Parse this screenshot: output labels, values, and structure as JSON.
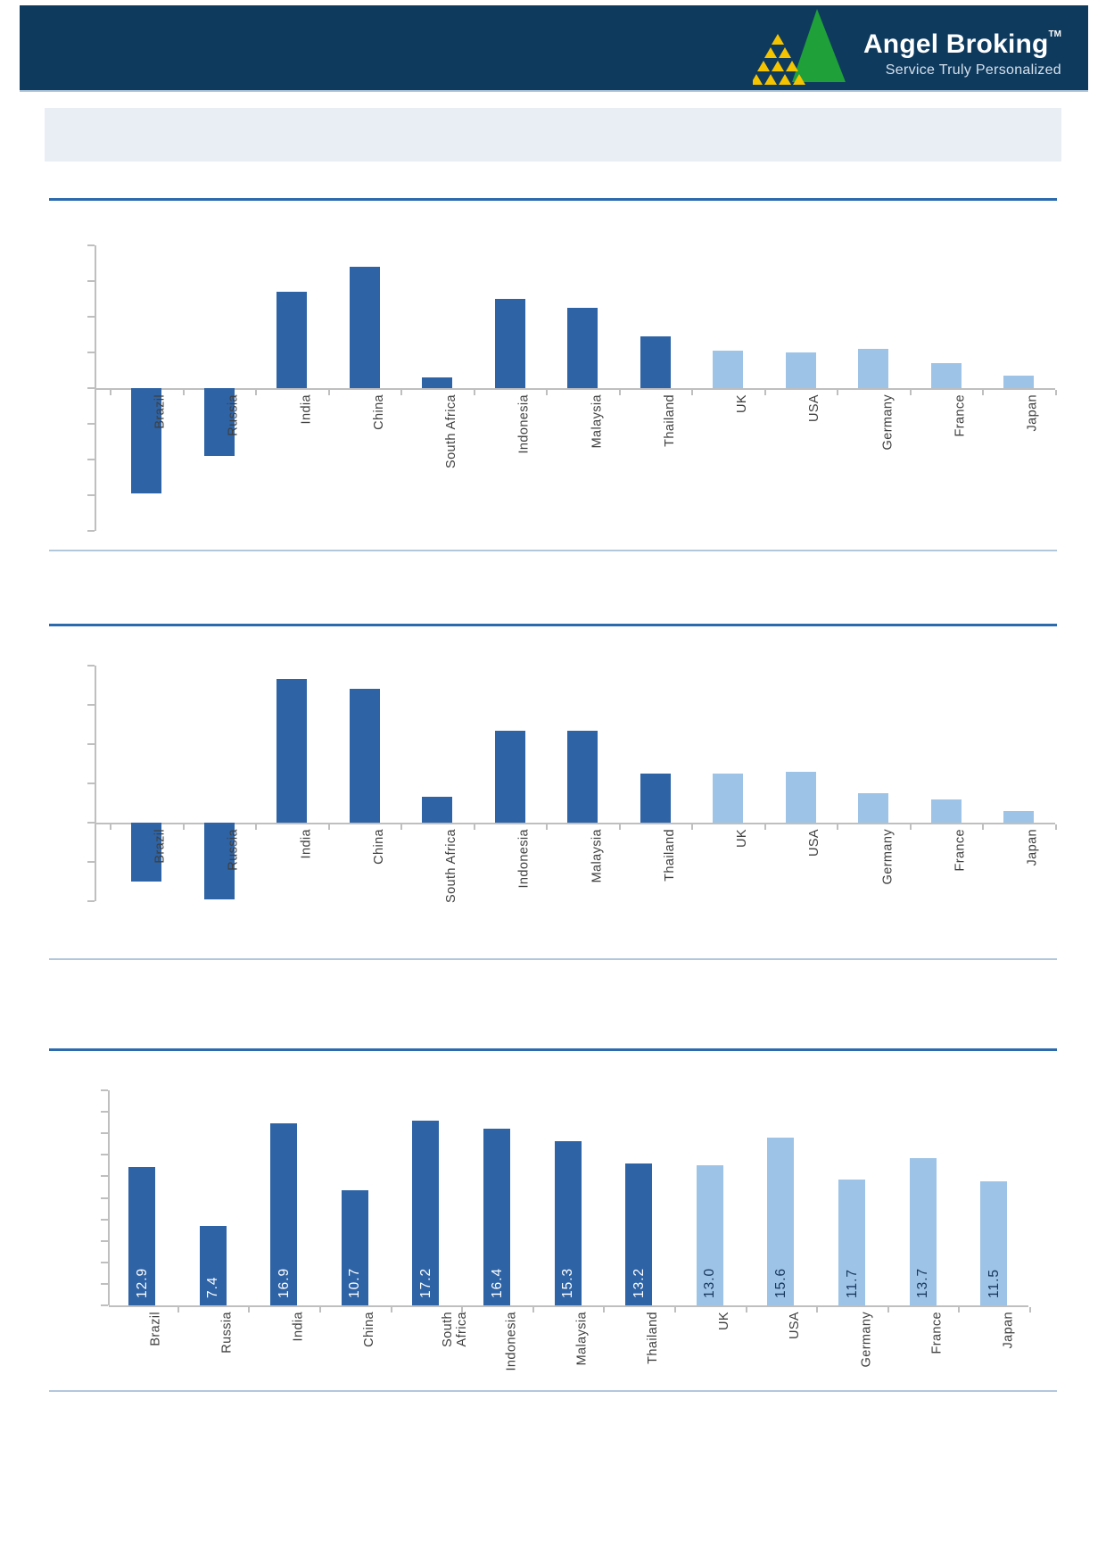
{
  "header": {
    "brand": "Angel Broking",
    "trademark": "TM",
    "tagline": "Service Truly Personalized"
  },
  "colors": {
    "header_band": "#0E3A5E",
    "logo_green": "#1FA038",
    "logo_yellow": "#F5C400",
    "rule": "#2A6AAD",
    "separator": "#B3C7DB",
    "axis": "#BFBFBF",
    "label_text": "#3F3F3F",
    "title_band_bg": "#E9EEF4",
    "bar_dark": "#2E63A5",
    "bar_light": "#9DC3E6",
    "value_label_on_dark": "#FFFFFF",
    "value_label_on_light": "#17375E"
  },
  "chart_data": [
    {
      "type": "bar",
      "title": "",
      "categories": [
        "Brazil",
        "Russia",
        "India",
        "China",
        "South Africa",
        "Indonesia",
        "Malaysia",
        "Thailand",
        "UK",
        "USA",
        "Germany",
        "France",
        "Japan"
      ],
      "values": [
        -5.9,
        -3.8,
        5.4,
        6.8,
        0.6,
        5.0,
        4.5,
        2.9,
        2.1,
        2.0,
        2.2,
        1.4,
        0.7
      ],
      "dark_count": 8,
      "xlabel": "",
      "ylabel": "",
      "ylim": [
        -8,
        8
      ],
      "ytick_step": 2,
      "grid": false,
      "legend": "none",
      "axis_tick_labels_visible": false,
      "value_labels_shown": false
    },
    {
      "type": "bar",
      "title": "",
      "categories": [
        "Brazil",
        "Russia",
        "India",
        "China",
        "South Africa",
        "Indonesia",
        "Malaysia",
        "Thailand",
        "UK",
        "USA",
        "Germany",
        "France",
        "Japan"
      ],
      "values": [
        -3.0,
        -3.9,
        7.3,
        6.8,
        1.3,
        4.7,
        4.7,
        2.5,
        2.5,
        2.6,
        1.5,
        1.2,
        0.6
      ],
      "dark_count": 8,
      "xlabel": "",
      "ylabel": "",
      "ylim": [
        -4,
        8
      ],
      "ytick_step": 2,
      "grid": false,
      "legend": "none",
      "axis_tick_labels_visible": false,
      "value_labels_shown": false
    },
    {
      "type": "bar",
      "title": "",
      "categories": [
        "Brazil",
        "Russia",
        "India",
        "China",
        "South Africa",
        "Indonesia",
        "Malaysia",
        "Thailand",
        "UK",
        "USA",
        "Germany",
        "France",
        "Japan"
      ],
      "values": [
        12.9,
        7.4,
        16.9,
        10.7,
        17.2,
        16.4,
        15.3,
        13.2,
        13.0,
        15.6,
        11.7,
        13.7,
        11.5
      ],
      "value_labels": [
        "12.9",
        "7.4",
        "16.9",
        "10.7",
        "17.2",
        "16.4",
        "15.3",
        "13.2",
        "13.0",
        "15.6",
        "11.7",
        "13.7",
        "11.5"
      ],
      "dark_count": 8,
      "xlabel": "",
      "ylabel": "",
      "ylim": [
        0,
        20
      ],
      "ytick_step": 2,
      "grid": false,
      "legend": "none",
      "axis_tick_labels_visible": false,
      "value_labels_shown": true
    }
  ]
}
